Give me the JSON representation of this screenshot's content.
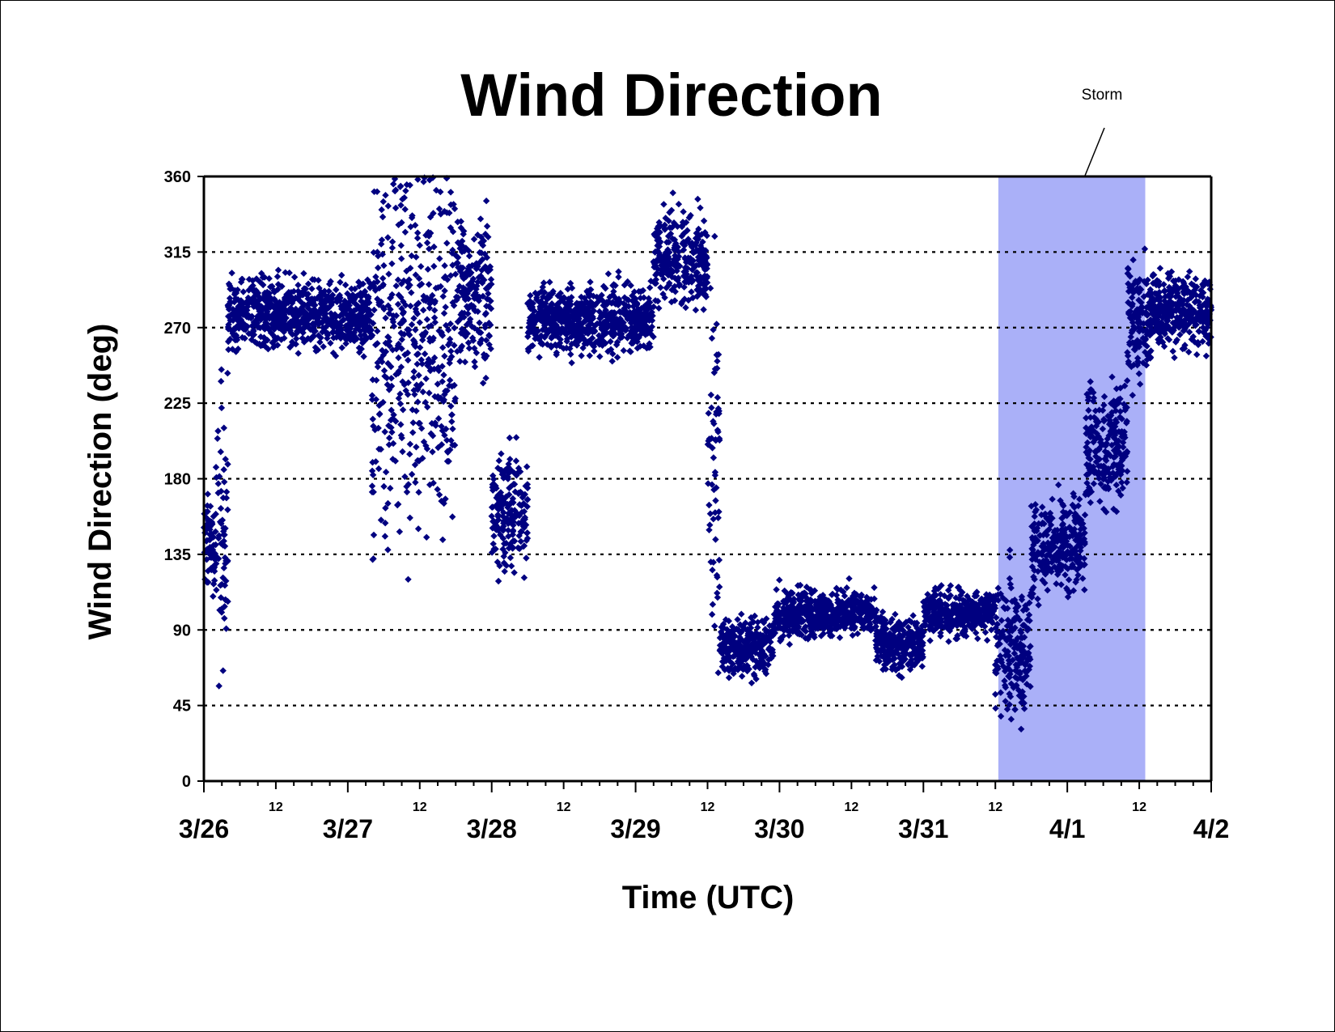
{
  "chart_data": {
    "type": "scatter",
    "title": "Wind Direction",
    "xlabel": "Time (UTC)",
    "ylabel": "Wind Direction (deg)",
    "ylim": [
      0,
      360
    ],
    "yticks": [
      0,
      45,
      90,
      135,
      180,
      225,
      270,
      315,
      360
    ],
    "xlim": [
      "3/26 00",
      "4/2 00"
    ],
    "x_major_tick_labels": [
      "3/26",
      "3/27",
      "3/28",
      "3/29",
      "3/30",
      "3/31",
      "4/1",
      "4/2"
    ],
    "x_minor_tick_label": "12",
    "grid": "horizontal dotted",
    "marker": "diamond",
    "series_color": "#000080",
    "annotation": {
      "text": "Storm",
      "shade_start": "3/31 12:30",
      "shade_end": "4/1 13:00",
      "shade_color": "#aab0f8"
    },
    "series": [
      {
        "points_description": "wind direction samples",
        "segments": [
          {
            "t_start": "3/26 00",
            "t_end": "3/26 02",
            "center": 140,
            "spread": 30
          },
          {
            "t_start": "3/26 02",
            "t_end": "3/26 04",
            "center": 150,
            "spread": 90
          },
          {
            "t_start": "3/26 04",
            "t_end": "3/27 04",
            "center": 278,
            "spread": 22
          },
          {
            "t_start": "3/27 04",
            "t_end": "3/27 18",
            "center": 260,
            "spread": 120
          },
          {
            "t_start": "3/27 18",
            "t_end": "3/28 00",
            "center": 290,
            "spread": 50
          },
          {
            "t_start": "3/28 00",
            "t_end": "3/28 06",
            "center": 160,
            "spread": 35
          },
          {
            "t_start": "3/28 06",
            "t_end": "3/29 03",
            "center": 275,
            "spread": 22
          },
          {
            "t_start": "3/29 03",
            "t_end": "3/29 12",
            "center": 310,
            "spread": 30
          },
          {
            "t_start": "3/29 12",
            "t_end": "3/29 14",
            "center": 200,
            "spread": 130
          },
          {
            "t_start": "3/29 14",
            "t_end": "3/29 23",
            "center": 80,
            "spread": 18
          },
          {
            "t_start": "3/29 23",
            "t_end": "3/30 16",
            "center": 100,
            "spread": 15
          },
          {
            "t_start": "3/30 16",
            "t_end": "3/31 00",
            "center": 82,
            "spread": 18
          },
          {
            "t_start": "3/31 00",
            "t_end": "3/31 12",
            "center": 100,
            "spread": 15
          },
          {
            "t_start": "3/31 12",
            "t_end": "3/31 18",
            "center": 80,
            "spread": 45
          },
          {
            "t_start": "3/31 18",
            "t_end": "4/1 03",
            "center": 140,
            "spread": 30
          },
          {
            "t_start": "4/1 03",
            "t_end": "4/1 10",
            "center": 200,
            "spread": 40
          },
          {
            "t_start": "4/1 10",
            "t_end": "4/1 14",
            "center": 275,
            "spread": 40
          },
          {
            "t_start": "4/1 14",
            "t_end": "4/2 00",
            "center": 280,
            "spread": 25
          }
        ]
      }
    ]
  }
}
